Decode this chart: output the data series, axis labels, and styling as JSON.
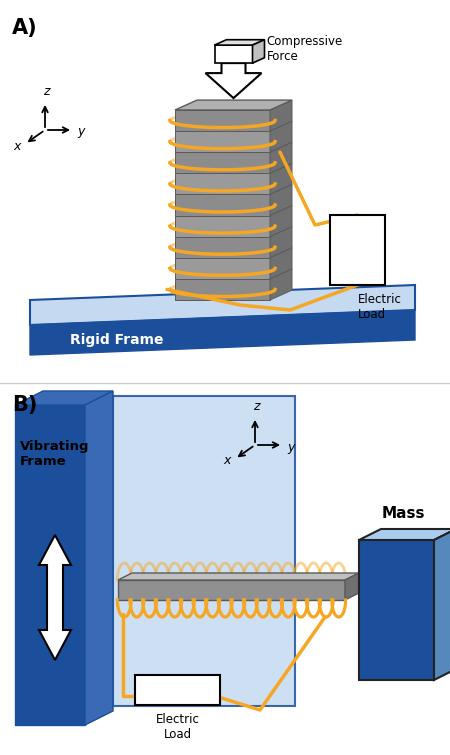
{
  "fig_width": 4.5,
  "fig_height": 7.55,
  "dpi": 100,
  "bg_color": "#ffffff",
  "blue_dark": "#1b4f9b",
  "blue_light": "#c5daf0",
  "blue_medium": "#3a6ab5",
  "gray_main": "#8c8c8c",
  "gray_light": "#b0b0b0",
  "gray_dark": "#5a5a5a",
  "gray_top": "#c0c0c0",
  "orange_wire": "#f5a623",
  "label_A": "A)",
  "label_B": "B)",
  "text_rigid": "Rigid Frame",
  "text_compressive": "Compressive\nForce",
  "text_electric_load_A": "Electric\nLoad",
  "text_vibrating": "Vibrating\nFrame",
  "text_electric_load_B": "Electric\nLoad",
  "text_mass": "Mass"
}
